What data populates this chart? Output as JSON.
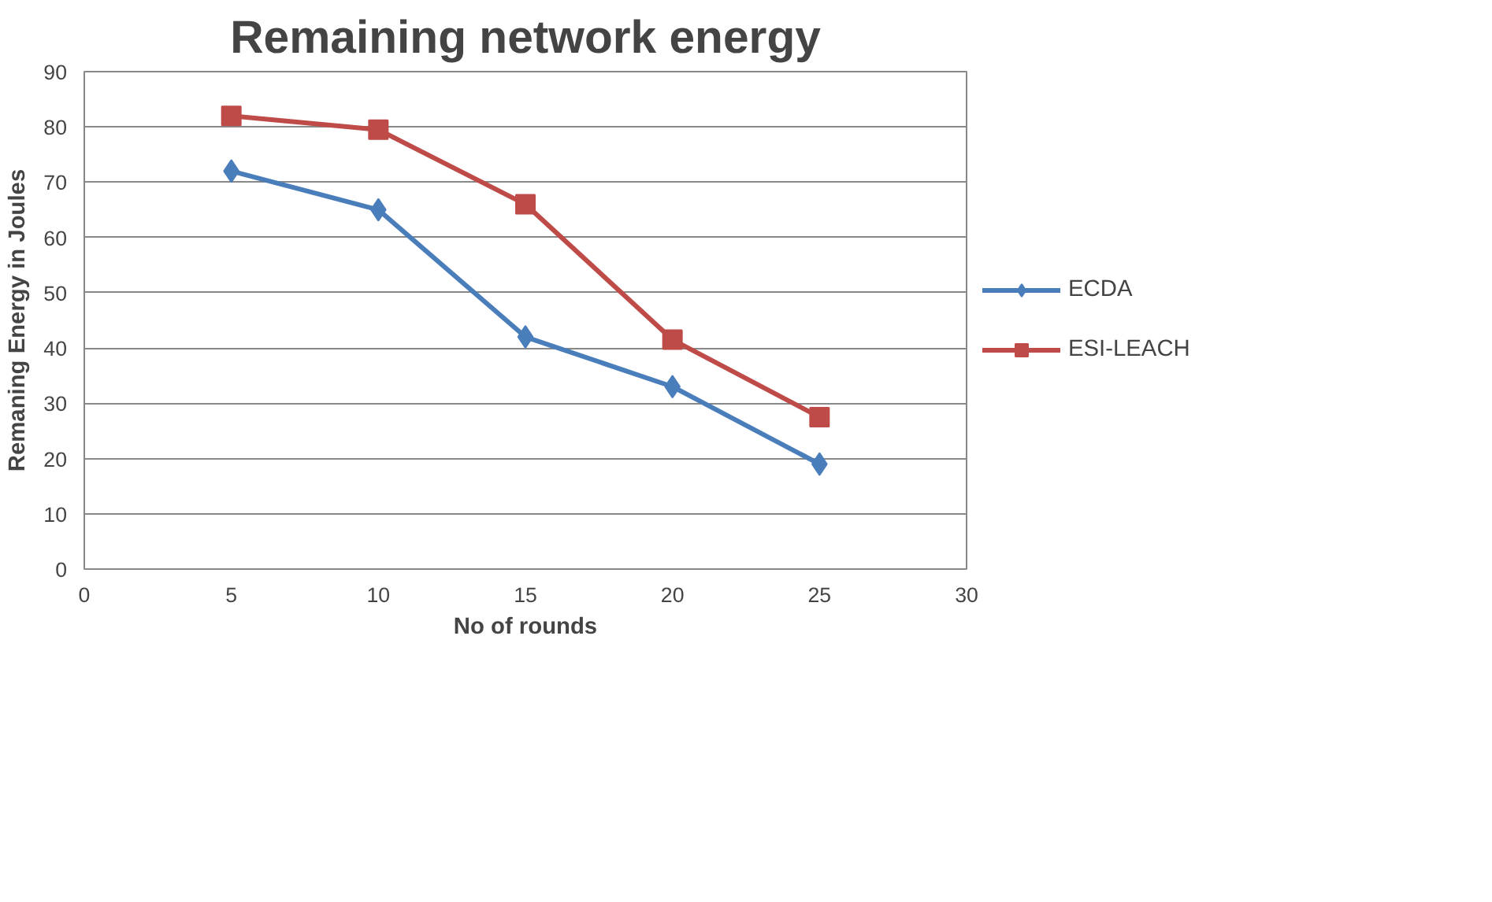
{
  "chart_data": {
    "type": "line",
    "title": "Remaining network energy",
    "xlabel": "No of rounds",
    "ylabel": "Remaning Energy in Joules",
    "x": [
      5,
      10,
      15,
      20,
      25
    ],
    "series": [
      {
        "name": "ECDA",
        "color": "#4a7ebb",
        "values": [
          72,
          65,
          42,
          33,
          19
        ],
        "marker": "diamond"
      },
      {
        "name": "ESI-LEACH",
        "color": "#be4b48",
        "values": [
          82,
          79.5,
          66,
          41.5,
          27.5
        ],
        "marker": "square"
      }
    ],
    "xlim": [
      0,
      30
    ],
    "xticks": [
      0,
      5,
      10,
      15,
      20,
      25,
      30
    ],
    "ylim": [
      0,
      90
    ],
    "yticks": [
      0,
      10,
      20,
      30,
      40,
      50,
      60,
      70,
      80,
      90
    ],
    "grid": "y",
    "legend": "right",
    "line_style": "solid"
  }
}
